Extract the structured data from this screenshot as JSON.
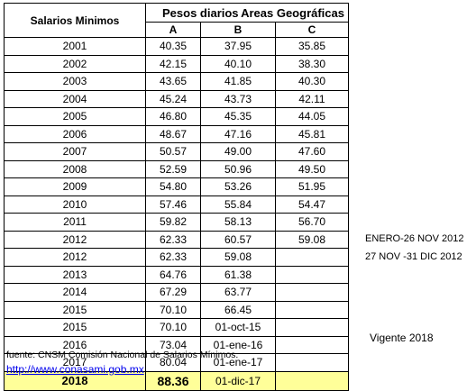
{
  "table": {
    "title": "Salarios Minimos",
    "header_pesos": "Pesos diarios",
    "header_areas": "Areas Geográficas",
    "columns": [
      "A",
      "B",
      "C"
    ],
    "rows": [
      {
        "year": "2001",
        "a": "40.35",
        "b": "37.95",
        "c": "35.85",
        "note": ""
      },
      {
        "year": "2002",
        "a": "42.15",
        "b": "40.10",
        "c": "38.30",
        "note": ""
      },
      {
        "year": "2003",
        "a": "43.65",
        "b": "41.85",
        "c": "40.30",
        "note": ""
      },
      {
        "year": "2004",
        "a": "45.24",
        "b": "43.73",
        "c": "42.11",
        "note": ""
      },
      {
        "year": "2005",
        "a": "46.80",
        "b": "45.35",
        "c": "44.05",
        "note": ""
      },
      {
        "year": "2006",
        "a": "48.67",
        "b": "47.16",
        "c": "45.81",
        "note": ""
      },
      {
        "year": "2007",
        "a": "50.57",
        "b": "49.00",
        "c": "47.60",
        "note": ""
      },
      {
        "year": "2008",
        "a": "52.59",
        "b": "50.96",
        "c": "49.50",
        "note": ""
      },
      {
        "year": "2009",
        "a": "54.80",
        "b": "53.26",
        "c": "51.95",
        "note": ""
      },
      {
        "year": "2010",
        "a": "57.46",
        "b": "55.84",
        "c": "54.47",
        "note": ""
      },
      {
        "year": "2011",
        "a": "59.82",
        "b": "58.13",
        "c": "56.70",
        "note": ""
      },
      {
        "year": "2012",
        "a": "62.33",
        "b": "60.57",
        "c": "59.08",
        "note": "ENERO-26 NOV 2012"
      },
      {
        "year": "2012",
        "a": "62.33",
        "b": "59.08",
        "c": "",
        "note": "27 NOV -31 DIC 2012"
      },
      {
        "year": "2013",
        "a": "64.76",
        "b": "61.38",
        "c": "",
        "note": ""
      },
      {
        "year": "2014",
        "a": "67.29",
        "b": "63.77",
        "c": "",
        "note": ""
      },
      {
        "year": "2015",
        "a": "70.10",
        "b": "66.45",
        "c": "",
        "note": ""
      },
      {
        "year": "2015",
        "a": "70.10",
        "b": "01-oct-15",
        "c": "",
        "note": ""
      },
      {
        "year": "2016",
        "a": "73.04",
        "b": "01-ene-16",
        "c": "",
        "note": ""
      },
      {
        "year": "2017",
        "a": "80.04",
        "b": "01-ene-17",
        "c": "",
        "note": ""
      }
    ],
    "highlight": {
      "year": "2018",
      "a": "88.36",
      "b": "01-dic-17",
      "c": "",
      "note": "Vigente 2018",
      "color": "#ffff99"
    }
  },
  "source_text": "fuente: CNSM Comisión Nacional de Salarios Mínimos.",
  "link_text": "http://www.conasami.gob.mx"
}
